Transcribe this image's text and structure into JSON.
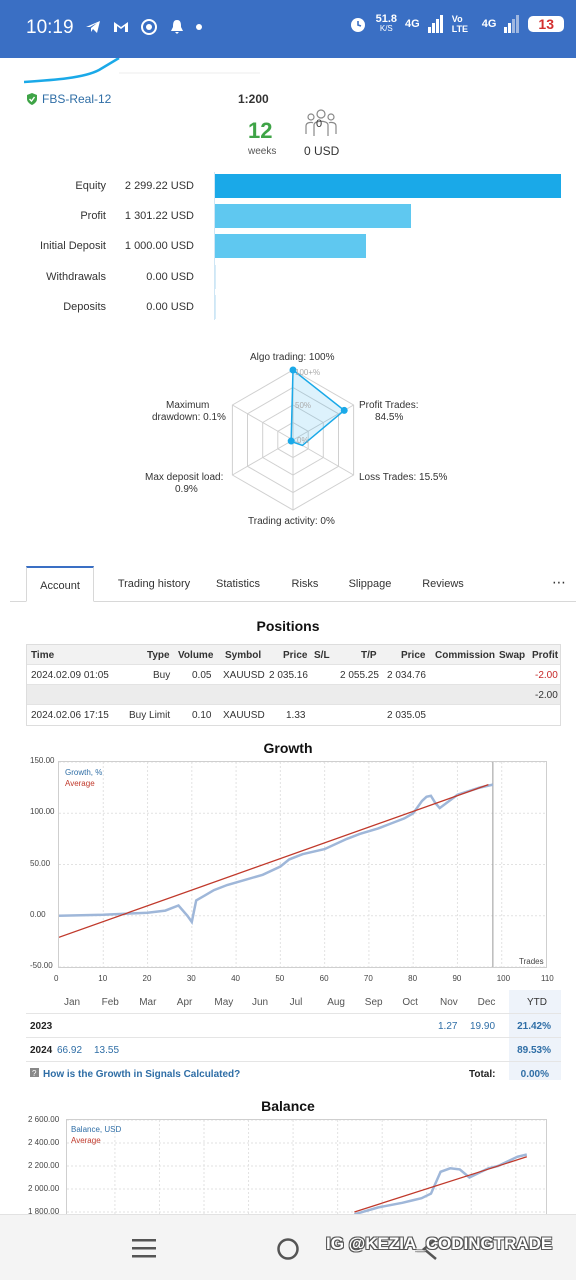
{
  "status_bar": {
    "time": "10:19",
    "net_speed": "51.8",
    "net_unit": "K/S",
    "net1": "4G",
    "volte": "Vo LTE",
    "net2": "4G",
    "battery": "13"
  },
  "account": {
    "name": "FBS-Real-12",
    "leverage": "1:200",
    "weeks_value": "12",
    "weeks_label": "weeks",
    "subscribers_count": "0",
    "subscribers_funds": "0 USD"
  },
  "bars": [
    {
      "label": "Equity",
      "value": "2 299.22 USD",
      "fraction": 1.0,
      "color": "#1aa9e8"
    },
    {
      "label": "Profit",
      "value": "1 301.22 USD",
      "fraction": 0.566,
      "color": "#5fc8f0"
    },
    {
      "label": "Initial Deposit",
      "value": "1 000.00 USD",
      "fraction": 0.435,
      "color": "#5fc8f0"
    },
    {
      "label": "Withdrawals",
      "value": "0.00 USD",
      "fraction": 0,
      "color": "#5fc8f0"
    },
    {
      "label": "Deposits",
      "value": "0.00 USD",
      "fraction": 0,
      "color": "#5fc8f0"
    }
  ],
  "radar": {
    "algo": "Algo trading: 100%",
    "profit_trades_1": "Profit Trades:",
    "profit_trades_2": "84.5%",
    "loss_trades": "Loss Trades: 15.5%",
    "trading_activity": "Trading activity: 0%",
    "max_deposit_1": "Max deposit load:",
    "max_deposit_2": "0.9%",
    "max_dd_1": "Maximum",
    "max_dd_2": "drawdown: 0.1%",
    "ring_100": "100+%",
    "ring_50": "50%",
    "ring_0": "0%",
    "values": [
      1.0,
      0.845,
      0.155,
      0.0,
      0.009,
      0.001
    ]
  },
  "tabs": [
    "Account",
    "Trading history",
    "Statistics",
    "Risks",
    "Slippage",
    "Reviews"
  ],
  "tabs_more": "⋯",
  "positions": {
    "title": "Positions",
    "headers": [
      "Time",
      "Type",
      "Volume",
      "Symbol",
      "Price",
      "S/L",
      "T/P",
      "Price",
      "Commission",
      "Swap",
      "Profit"
    ],
    "row1": {
      "time": "2024.02.09 01:05",
      "type": "Buy",
      "volume": "0.05",
      "symbol": "XAUUSD",
      "price": "2 035.16",
      "tp": "2 055.25",
      "price2": "2 034.76",
      "profit": "-2.00"
    },
    "subtotal": "-2.00",
    "row2": {
      "time": "2024.02.06 17:15",
      "type": "Buy Limit",
      "volume": "0.10",
      "symbol": "XAUUSD",
      "price": "1.33",
      "price2": "2 035.05"
    }
  },
  "growth": {
    "title": "Growth",
    "legend_series": "Growth, %",
    "legend_avg": "Average",
    "x_label": "Trades",
    "y_ticks": [
      "150.00",
      "100.00",
      "50.00",
      "0.00",
      "-50.00"
    ],
    "x_ticks": [
      "0",
      "10",
      "20",
      "30",
      "40",
      "50",
      "60",
      "70",
      "80",
      "90",
      "100",
      "110"
    ],
    "months": [
      "Jan",
      "Feb",
      "Mar",
      "Apr",
      "May",
      "Jun",
      "Jul",
      "Aug",
      "Sep",
      "Oct",
      "Nov",
      "Dec"
    ],
    "ytd_label": "YTD",
    "years": [
      {
        "year": "2023",
        "nov": "1.27",
        "dec": "19.90",
        "ytd": "21.42%"
      },
      {
        "year": "2024",
        "jan": "66.92",
        "feb": "13.55",
        "ytd": "89.53%"
      }
    ],
    "help_link": "How is the Growth in Signals Calculated?",
    "total_label": "Total:",
    "total_value": "0.00%"
  },
  "chart_data": [
    {
      "type": "line",
      "title": "Growth",
      "xlabel": "Trades",
      "ylabel": "",
      "xlim": [
        0,
        110
      ],
      "ylim": [
        -50,
        150
      ],
      "series": [
        {
          "name": "Growth, %",
          "color": "#9fb7d9",
          "x": [
            0,
            5,
            10,
            15,
            20,
            24,
            27,
            29,
            30,
            31,
            33,
            35,
            38,
            42,
            46,
            50,
            52,
            55,
            60,
            65,
            68,
            72,
            75,
            78,
            80,
            82,
            83,
            84,
            85,
            86,
            90,
            95,
            98
          ],
          "y": [
            0,
            0.5,
            1,
            2,
            3,
            5,
            10,
            0,
            -6,
            15,
            20,
            25,
            30,
            35,
            40,
            48,
            55,
            60,
            65,
            75,
            80,
            85,
            90,
            95,
            100,
            112,
            116,
            117,
            110,
            105,
            118,
            125,
            128
          ]
        },
        {
          "name": "Average",
          "color": "#c0392b",
          "x": [
            0,
            97
          ],
          "y": [
            -21,
            128
          ]
        }
      ]
    },
    {
      "type": "line",
      "title": "Balance",
      "ylabel": "",
      "ylim": [
        1800,
        2600
      ],
      "y_ticks": [
        "2 600.00",
        "2 400.00",
        "2 200.00",
        "2 000.00",
        "1 800.00"
      ],
      "series": [
        {
          "name": "Balance, USD",
          "color": "#9fb7d9",
          "x": [
            0.6,
            0.65,
            0.7,
            0.72,
            0.74,
            0.76,
            0.78,
            0.8,
            0.82,
            0.84,
            0.86,
            0.88,
            0.9,
            0.92,
            0.94,
            0.96
          ],
          "y": [
            1780,
            1840,
            1880,
            1900,
            1920,
            1960,
            2150,
            2180,
            2170,
            2100,
            2140,
            2180,
            2200,
            2240,
            2280,
            2300
          ]
        },
        {
          "name": "Average",
          "color": "#c0392b",
          "x": [
            0.6,
            0.96
          ],
          "y": [
            1800,
            2280
          ]
        }
      ]
    }
  ],
  "balance": {
    "title": "Balance",
    "legend_series": "Balance, USD",
    "legend_avg": "Average"
  },
  "watermark": "IG @KEZIA_CODINGTRADE"
}
